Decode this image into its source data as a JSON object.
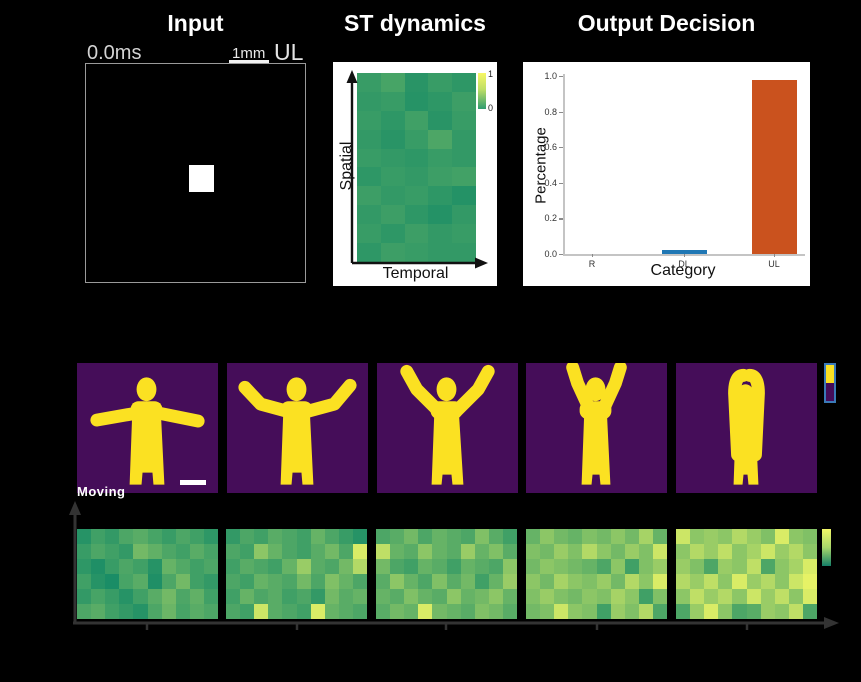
{
  "figure": {
    "panels": {
      "input": {
        "title": "Input",
        "time_label": "0.0ms",
        "scale_label": "1mm",
        "class_label": "UL"
      },
      "st_dynamics": {
        "title": "ST dynamics",
        "y_axis_label": "Spatial",
        "x_axis_label": "Temporal",
        "colorbar_top_label": "1",
        "colorbar_bottom_label": "0"
      },
      "output_decision": {
        "title": "Output Decision",
        "y_axis_label": "Percentage",
        "x_axis_label": "Category"
      },
      "gesture_frames": {
        "motion_label": "Moving",
        "frames": [
          {
            "pose": "arms-out"
          },
          {
            "pose": "arms-raising-low"
          },
          {
            "pose": "arms-raising-mid"
          },
          {
            "pose": "arms-raising-high"
          },
          {
            "pose": "arms-up"
          }
        ]
      }
    },
    "colors": {
      "silhouette_bg": "#450d59",
      "silhouette_fg": "#fbe122",
      "bar_blue": "#1f77b4",
      "bar_orange": "#ca521e",
      "axis_dark": "#333333",
      "heat_low": "#008066",
      "heat_high": "#ffff66"
    }
  },
  "chart_data": [
    {
      "type": "bar",
      "title": "Output Decision",
      "categories": [
        "R",
        "DL",
        "UL"
      ],
      "values": [
        0.0,
        0.02,
        0.98
      ],
      "bar_colors": [
        "#1f77b4",
        "#1f77b4",
        "#ca521e"
      ],
      "xlabel": "Category",
      "ylabel": "Percentage",
      "ylim": [
        0,
        1
      ],
      "yticks": [
        0.0,
        0.2,
        0.4,
        0.6,
        0.8,
        1.0
      ],
      "legend": false,
      "grid": false
    },
    {
      "type": "heatmap",
      "xlabel": "Temporal",
      "ylabel": "Spatial",
      "colorbar_range": [
        0,
        1
      ],
      "rows": 10,
      "cols": 5,
      "values": [
        [
          0.22,
          0.28,
          0.16,
          0.22,
          0.18
        ],
        [
          0.2,
          0.22,
          0.15,
          0.18,
          0.24
        ],
        [
          0.22,
          0.18,
          0.25,
          0.16,
          0.22
        ],
        [
          0.2,
          0.16,
          0.22,
          0.3,
          0.2
        ],
        [
          0.22,
          0.2,
          0.18,
          0.22,
          0.2
        ],
        [
          0.18,
          0.22,
          0.2,
          0.24,
          0.26
        ],
        [
          0.24,
          0.2,
          0.22,
          0.18,
          0.14
        ],
        [
          0.2,
          0.24,
          0.18,
          0.14,
          0.2
        ],
        [
          0.22,
          0.18,
          0.24,
          0.2,
          0.22
        ],
        [
          0.18,
          0.24,
          0.22,
          0.2,
          0.2
        ]
      ]
    },
    {
      "type": "heatmap-sequence",
      "frames": 5,
      "rows": 6,
      "cols": 10,
      "colorbar_range": [
        0,
        1
      ],
      "values": [
        [
          [
            0.15,
            0.25,
            0.2,
            0.3,
            0.35,
            0.28,
            0.22,
            0.3,
            0.25,
            0.18
          ],
          [
            0.22,
            0.3,
            0.25,
            0.2,
            0.45,
            0.38,
            0.3,
            0.25,
            0.35,
            0.28
          ],
          [
            0.18,
            0.12,
            0.22,
            0.3,
            0.25,
            0.15,
            0.4,
            0.32,
            0.25,
            0.3
          ],
          [
            0.25,
            0.15,
            0.1,
            0.28,
            0.35,
            0.12,
            0.3,
            0.45,
            0.25,
            0.2
          ],
          [
            0.2,
            0.28,
            0.22,
            0.15,
            0.25,
            0.35,
            0.45,
            0.3,
            0.38,
            0.25
          ],
          [
            0.3,
            0.35,
            0.25,
            0.2,
            0.15,
            0.3,
            0.42,
            0.28,
            0.35,
            0.3
          ]
        ],
        [
          [
            0.2,
            0.3,
            0.25,
            0.35,
            0.3,
            0.25,
            0.4,
            0.3,
            0.22,
            0.15
          ],
          [
            0.3,
            0.25,
            0.55,
            0.4,
            0.3,
            0.25,
            0.35,
            0.45,
            0.3,
            0.85
          ],
          [
            0.25,
            0.35,
            0.3,
            0.25,
            0.4,
            0.6,
            0.35,
            0.3,
            0.45,
            0.7
          ],
          [
            0.3,
            0.25,
            0.4,
            0.35,
            0.3,
            0.45,
            0.3,
            0.5,
            0.4,
            0.3
          ],
          [
            0.25,
            0.4,
            0.3,
            0.35,
            0.25,
            0.3,
            0.2,
            0.45,
            0.35,
            0.4
          ],
          [
            0.3,
            0.25,
            0.8,
            0.35,
            0.3,
            0.25,
            0.85,
            0.4,
            0.35,
            0.3
          ]
        ],
        [
          [
            0.3,
            0.35,
            0.45,
            0.3,
            0.4,
            0.35,
            0.3,
            0.5,
            0.35,
            0.25
          ],
          [
            0.75,
            0.4,
            0.35,
            0.55,
            0.4,
            0.35,
            0.6,
            0.4,
            0.5,
            0.35
          ],
          [
            0.45,
            0.3,
            0.25,
            0.4,
            0.35,
            0.25,
            0.4,
            0.35,
            0.3,
            0.55
          ],
          [
            0.35,
            0.55,
            0.4,
            0.3,
            0.5,
            0.35,
            0.45,
            0.25,
            0.4,
            0.6
          ],
          [
            0.4,
            0.35,
            0.5,
            0.4,
            0.35,
            0.55,
            0.4,
            0.45,
            0.55,
            0.4
          ],
          [
            0.35,
            0.45,
            0.4,
            0.85,
            0.45,
            0.4,
            0.35,
            0.5,
            0.45,
            0.35
          ]
        ],
        [
          [
            0.4,
            0.55,
            0.45,
            0.4,
            0.5,
            0.45,
            0.55,
            0.45,
            0.65,
            0.4
          ],
          [
            0.5,
            0.45,
            0.6,
            0.5,
            0.7,
            0.55,
            0.45,
            0.6,
            0.5,
            0.8
          ],
          [
            0.45,
            0.55,
            0.5,
            0.45,
            0.4,
            0.3,
            0.55,
            0.25,
            0.5,
            0.6
          ],
          [
            0.55,
            0.45,
            0.65,
            0.55,
            0.5,
            0.6,
            0.45,
            0.7,
            0.55,
            0.85
          ],
          [
            0.5,
            0.6,
            0.5,
            0.45,
            0.55,
            0.5,
            0.65,
            0.55,
            0.25,
            0.5
          ],
          [
            0.45,
            0.5,
            0.8,
            0.55,
            0.5,
            0.25,
            0.6,
            0.5,
            0.7,
            0.3
          ]
        ],
        [
          [
            0.8,
            0.55,
            0.6,
            0.55,
            0.7,
            0.6,
            0.5,
            0.85,
            0.55,
            0.5
          ],
          [
            0.55,
            0.7,
            0.6,
            0.75,
            0.55,
            0.65,
            0.8,
            0.6,
            0.7,
            0.55
          ],
          [
            0.6,
            0.5,
            0.3,
            0.6,
            0.55,
            0.75,
            0.3,
            0.55,
            0.65,
            0.85
          ],
          [
            0.7,
            0.6,
            0.75,
            0.55,
            0.85,
            0.6,
            0.7,
            0.55,
            0.8,
            0.9
          ],
          [
            0.55,
            0.75,
            0.6,
            0.7,
            0.55,
            0.8,
            0.6,
            0.75,
            0.55,
            0.85
          ],
          [
            0.3,
            0.6,
            0.85,
            0.55,
            0.3,
            0.35,
            0.6,
            0.55,
            0.75,
            0.3
          ]
        ]
      ]
    }
  ]
}
